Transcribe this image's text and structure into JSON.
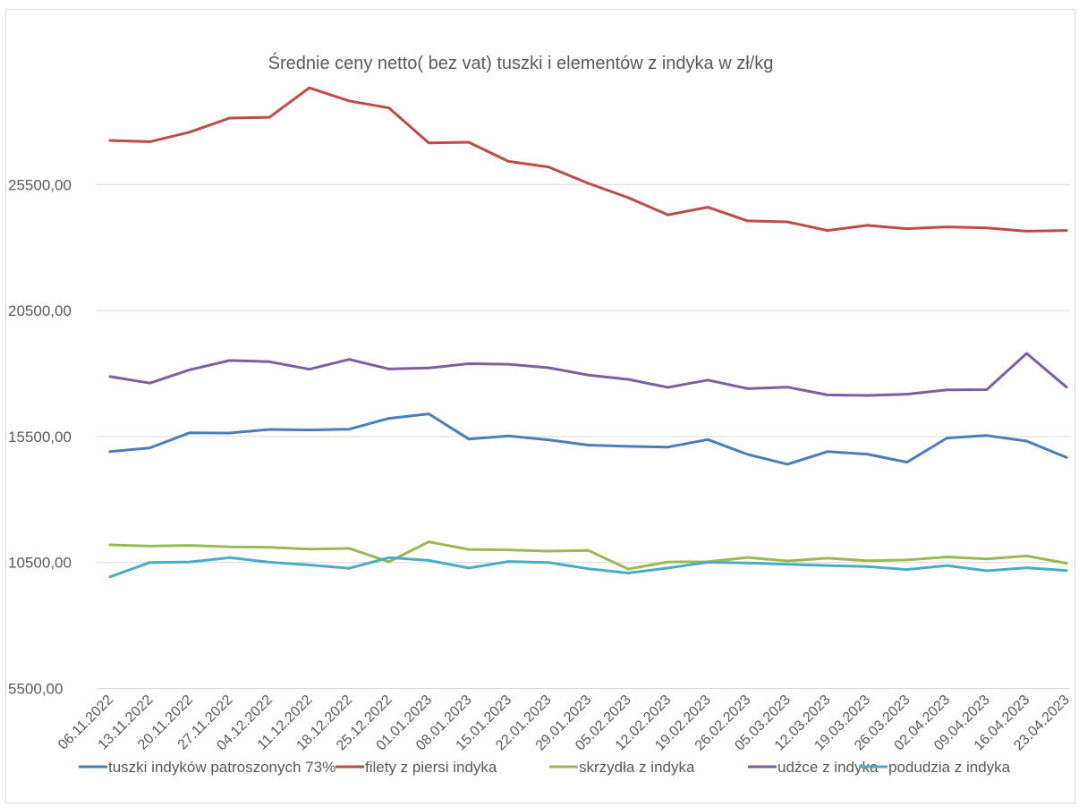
{
  "chart_data": {
    "type": "line",
    "title": "Średnie ceny netto( bez vat) tuszki i elementów z indyka w zł/kg",
    "xlabel": "",
    "ylabel": "",
    "ylim": [
      5500,
      30500
    ],
    "y_ticks": [
      "25500,00",
      "20500,00",
      "15500,00",
      "10500,00",
      "5500,00"
    ],
    "y_tick_values": [
      25500,
      20500,
      15500,
      10500,
      5500
    ],
    "grid": true,
    "legend_position": "bottom",
    "categories": [
      "06.11.2022",
      "13.11.2022",
      "20.11.2022",
      "27.11.2022",
      "04.12.2022",
      "11.12.2022",
      "18.12.2022",
      "25.12.2022",
      "01.01.2023",
      "08.01.2023",
      "15.01.2023",
      "22.01.2023",
      "29.01.2023",
      "05.02.2023",
      "12.02.2023",
      "19.02.2023",
      "26.02.2023",
      "05.03.2023",
      "12.03.2023",
      "19.03.2023",
      "26.03.2023",
      "02.04.2023",
      "09.04.2023",
      "16.04.2023",
      "23.04.2023"
    ],
    "series": [
      {
        "name": "tuszki indyków patroszonych 73%",
        "color": "#4a7ebb",
        "values": [
          14900,
          15050,
          15650,
          15640,
          15780,
          15760,
          15790,
          16220,
          16400,
          15400,
          15520,
          15370,
          15160,
          15110,
          15080,
          15380,
          14790,
          14400,
          14900,
          14800,
          14480,
          15440,
          15540,
          15320,
          14670
        ]
      },
      {
        "name": "filety z piersi indyka",
        "color": "#be4b48",
        "values": [
          27250,
          27200,
          27580,
          28140,
          28170,
          29340,
          28820,
          28540,
          27150,
          27180,
          26420,
          26200,
          25550,
          24980,
          24300,
          24600,
          24060,
          24020,
          23680,
          23880,
          23750,
          23820,
          23780,
          23650,
          23680
        ]
      },
      {
        "name": "skrzydła z indyka",
        "color": "#98b954",
        "values": [
          11200,
          11150,
          11180,
          11120,
          11100,
          11030,
          11060,
          10530,
          11320,
          11020,
          11000,
          10950,
          10980,
          10240,
          10520,
          10530,
          10700,
          10560,
          10670,
          10570,
          10600,
          10720,
          10640,
          10760,
          10470
        ]
      },
      {
        "name": "udźce z indyka",
        "color": "#7d5fa0",
        "values": [
          17880,
          17620,
          18150,
          18520,
          18470,
          18170,
          18560,
          18180,
          18220,
          18390,
          18370,
          18230,
          17940,
          17770,
          17450,
          17740,
          17400,
          17460,
          17150,
          17130,
          17180,
          17350,
          17360,
          18800,
          17460
        ]
      },
      {
        "name": "podudzia z indyka",
        "color": "#4bacc6",
        "values": [
          9930,
          10500,
          10520,
          10690,
          10510,
          10400,
          10270,
          10690,
          10580,
          10280,
          10540,
          10500,
          10250,
          10080,
          10280,
          10510,
          10480,
          10430,
          10380,
          10340,
          10220,
          10380,
          10170,
          10290,
          10180
        ]
      }
    ]
  }
}
